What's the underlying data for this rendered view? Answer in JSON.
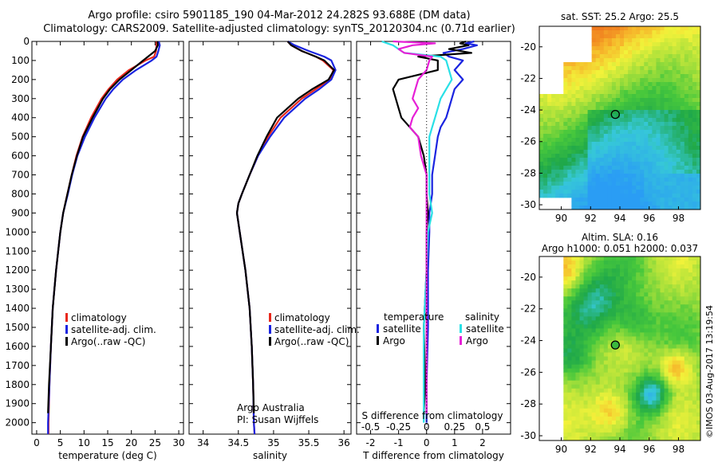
{
  "titles": {
    "line1": "Argo profile: csiro 5901185_190 04-Mar-2012 24.282S 93.688E (DM data)",
    "line2": "Climatology: CARS2009. Satellite-adjusted climatology: synTS_20120304.nc (0.71d earlier)"
  },
  "colors": {
    "climatology": "#e8281c",
    "satellite": "#1a24e0",
    "argo": "#000000",
    "sal_satellite": "#29e0e6",
    "sal_argo": "#e620d6"
  },
  "chart_data": [
    {
      "type": "line",
      "id": "temperature",
      "xlabel": "temperature (deg C)",
      "ylabel": "",
      "xlim": [
        -1,
        31
      ],
      "ylim": [
        2060,
        0
      ],
      "xticks": [
        "0",
        "5",
        "10",
        "15",
        "20",
        "25",
        "30"
      ],
      "xtick_values": [
        0,
        5,
        10,
        15,
        20,
        25,
        30
      ],
      "yticks": [
        "0",
        "100",
        "200",
        "300",
        "400",
        "500",
        "600",
        "700",
        "800",
        "900",
        "1000",
        "1100",
        "1200",
        "1300",
        "1400",
        "1500",
        "1600",
        "1700",
        "1800",
        "1900",
        "2000"
      ],
      "ytick_values": [
        0,
        100,
        200,
        300,
        400,
        500,
        600,
        700,
        800,
        900,
        1000,
        1100,
        1200,
        1300,
        1400,
        1500,
        1600,
        1700,
        1800,
        1900,
        2000
      ],
      "legend": [
        "climatology",
        "satellite-adj. clim.",
        "Argo(..raw -QC)"
      ],
      "series": [
        {
          "name": "climatology",
          "color": "#e8281c",
          "depth": [
            0,
            20,
            50,
            80,
            100,
            150,
            200,
            250,
            300,
            400,
            500,
            600,
            700,
            800,
            900,
            1000,
            1200,
            1400,
            1600,
            1800,
            2000,
            2060
          ],
          "values": [
            25.3,
            25.3,
            25.2,
            24.8,
            23.0,
            19.5,
            17.0,
            15.2,
            13.7,
            11.5,
            9.7,
            8.4,
            7.4,
            6.5,
            5.6,
            5.0,
            4.1,
            3.4,
            3.0,
            2.7,
            2.5,
            2.5
          ]
        },
        {
          "name": "satellite-adj. clim.",
          "color": "#1a24e0",
          "depth": [
            0,
            20,
            50,
            80,
            100,
            150,
            200,
            250,
            300,
            400,
            500,
            600,
            700,
            800,
            900,
            1000,
            1200,
            1400,
            1600,
            1800,
            2000,
            2060
          ],
          "values": [
            25.8,
            26.0,
            25.7,
            25.3,
            24.3,
            21.0,
            18.2,
            16.2,
            14.6,
            12.2,
            10.2,
            8.6,
            7.5,
            6.6,
            5.6,
            5.0,
            4.1,
            3.4,
            3.0,
            2.7,
            2.4,
            2.4
          ]
        },
        {
          "name": "Argo(..raw -QC)",
          "color": "#000000",
          "depth": [
            0,
            20,
            50,
            80,
            100,
            150,
            200,
            250,
            300,
            400,
            500,
            600,
            700,
            800,
            900,
            1000,
            1200,
            1400,
            1600,
            1800,
            1950
          ],
          "values": [
            25.5,
            25.6,
            25.0,
            23.5,
            22.5,
            20.0,
            17.5,
            15.5,
            14.0,
            11.8,
            9.8,
            8.5,
            7.4,
            6.5,
            5.6,
            5.0,
            4.1,
            3.4,
            3.0,
            2.6,
            2.4
          ]
        }
      ]
    },
    {
      "type": "line",
      "id": "salinity",
      "xlabel": "salinity",
      "ylabel": "",
      "xlim": [
        33.8,
        36.1
      ],
      "ylim": [
        2060,
        0
      ],
      "xticks": [
        "34",
        "34.5",
        "35",
        "35.5",
        "36"
      ],
      "xtick_values": [
        34,
        34.5,
        35,
        35.5,
        36
      ],
      "legend": [
        "climatology",
        "satellite-adj. clim.",
        "Argo(..raw -QC)"
      ],
      "annotation": [
        "Argo Australia",
        "PI: Susan Wijffels"
      ],
      "series": [
        {
          "name": "climatology",
          "color": "#e8281c",
          "depth": [
            0,
            20,
            50,
            80,
            100,
            150,
            200,
            250,
            300,
            400,
            500,
            600,
            700,
            800,
            850,
            900,
            1000,
            1200,
            1400,
            1600,
            1800,
            2000,
            2060
          ],
          "values": [
            35.2,
            35.25,
            35.4,
            35.6,
            35.7,
            35.85,
            35.8,
            35.6,
            35.4,
            35.1,
            34.92,
            34.78,
            34.66,
            34.55,
            34.5,
            34.48,
            34.52,
            34.6,
            34.66,
            34.69,
            34.71,
            34.72,
            34.73
          ]
        },
        {
          "name": "satellite-adj. clim.",
          "color": "#1a24e0",
          "depth": [
            0,
            20,
            50,
            80,
            100,
            150,
            200,
            250,
            300,
            400,
            500,
            600,
            700,
            800,
            850,
            900,
            1000,
            1200,
            1400,
            1600,
            1800,
            2000,
            2060
          ],
          "values": [
            35.2,
            35.3,
            35.5,
            35.72,
            35.82,
            35.88,
            35.82,
            35.65,
            35.45,
            35.15,
            34.95,
            34.78,
            34.66,
            34.55,
            34.5,
            34.48,
            34.52,
            34.6,
            34.66,
            34.69,
            34.71,
            34.72,
            34.73
          ]
        },
        {
          "name": "Argo(..raw -QC)",
          "color": "#000000",
          "depth": [
            0,
            20,
            50,
            80,
            100,
            150,
            200,
            250,
            300,
            400,
            500,
            600,
            700,
            800,
            850,
            900,
            1000,
            1200,
            1400,
            1600,
            1800,
            1950
          ],
          "values": [
            35.2,
            35.25,
            35.4,
            35.6,
            35.72,
            35.86,
            35.78,
            35.55,
            35.35,
            35.05,
            34.9,
            34.77,
            34.66,
            34.55,
            34.5,
            34.48,
            34.52,
            34.6,
            34.66,
            34.69,
            34.71,
            34.72
          ]
        }
      ]
    },
    {
      "type": "line",
      "id": "difference",
      "xlabel": "T difference from climatology",
      "xlabel_top": "S difference from climatology",
      "xlim": [
        -2.5,
        3
      ],
      "ylim": [
        2060,
        0
      ],
      "xticks": [
        "-2",
        "-1",
        "0",
        "1",
        "2"
      ],
      "xtick_values": [
        -2,
        -1,
        0,
        1,
        2
      ],
      "sticks": [
        "-0.5",
        "-0.25",
        "0",
        "0.25",
        "0.5"
      ],
      "stick_values": [
        -2,
        -1,
        0,
        1,
        2
      ],
      "legend_titles": [
        "temperature",
        "salinity"
      ],
      "legend": [
        "satellite",
        "Argo",
        "satellite",
        "Argo"
      ],
      "series": [
        {
          "name": "temperature satellite",
          "color": "#1a24e0",
          "depth": [
            0,
            10,
            20,
            40,
            60,
            80,
            100,
            150,
            200,
            250,
            300,
            350,
            400,
            450,
            500,
            600,
            700,
            800,
            900,
            1000,
            1200,
            1500,
            1800,
            2000
          ],
          "values": [
            1.7,
            1.4,
            1.8,
            1.3,
            0.6,
            0.8,
            1.3,
            1.0,
            1.3,
            1.0,
            0.9,
            0.8,
            0.7,
            0.5,
            0.4,
            0.3,
            0.2,
            0.2,
            0.1,
            0.1,
            0.05,
            0.05,
            0.0,
            0.0
          ]
        },
        {
          "name": "temperature Argo",
          "color": "#000000",
          "depth": [
            0,
            10,
            20,
            40,
            60,
            80,
            100,
            150,
            200,
            250,
            300,
            350,
            400,
            450,
            500,
            600,
            700,
            800,
            900,
            1000,
            1200,
            1500,
            1800,
            1950
          ],
          "values": [
            1.4,
            1.2,
            1.5,
            0.8,
            1.6,
            -0.3,
            0.4,
            0.4,
            -1.0,
            -1.2,
            -1.1,
            -1.0,
            -0.9,
            -0.6,
            -0.3,
            -0.1,
            0.0,
            0.0,
            0.05,
            0.0,
            0.0,
            -0.1,
            -0.05,
            -0.1
          ]
        },
        {
          "name": "salinity satellite",
          "color": "#29e0e6",
          "depth": [
            0,
            10,
            20,
            40,
            60,
            80,
            100,
            150,
            200,
            250,
            300,
            350,
            400,
            450,
            500,
            600,
            700,
            800,
            900,
            1000,
            1200,
            1500,
            1800,
            2000
          ],
          "values": [
            -1.6,
            -1.4,
            -1.2,
            -1.0,
            -0.8,
            0.5,
            0.7,
            0.8,
            0.9,
            0.7,
            0.5,
            0.4,
            0.3,
            0.2,
            0.1,
            0.1,
            0.1,
            0.1,
            0.2,
            0.05,
            0.0,
            -0.1,
            -0.1,
            -0.1
          ]
        },
        {
          "name": "salinity Argo",
          "color": "#e620d6",
          "depth": [
            0,
            10,
            20,
            40,
            60,
            80,
            100,
            150,
            200,
            250,
            300,
            350,
            400,
            450,
            500,
            600,
            700,
            800,
            900,
            1000,
            1200,
            1500,
            1800,
            1950
          ],
          "values": [
            -1.2,
            0.3,
            -0.5,
            -1.0,
            -0.8,
            0.2,
            0.1,
            0.0,
            -0.3,
            -0.4,
            -0.5,
            -0.3,
            -0.5,
            -0.6,
            -0.3,
            -0.2,
            0.0,
            0.0,
            0.0,
            0.0,
            0.0,
            0.0,
            0.0,
            0.0
          ]
        }
      ]
    },
    {
      "type": "heatmap",
      "id": "sst-map",
      "title": "sat. SST: 25.2 Argo: 25.5",
      "xlim": [
        88.5,
        99.5
      ],
      "ylim": [
        -30.3,
        -18.7
      ],
      "xticks": [
        "90",
        "92",
        "94",
        "96",
        "98"
      ],
      "xtick_values": [
        90,
        92,
        94,
        96,
        98
      ],
      "yticks": [
        "-20",
        "-22",
        "-24",
        "-26",
        "-28",
        "-30"
      ],
      "ytick_values": [
        -20,
        -22,
        -24,
        -26,
        -28,
        -30
      ],
      "marker": {
        "lon": 93.69,
        "lat": -24.28
      }
    },
    {
      "type": "heatmap",
      "id": "sla-map",
      "title": [
        "Altim. SLA: 0.16",
        "Argo h1000: 0.051 h2000: 0.037"
      ],
      "xlim": [
        88.5,
        99.5
      ],
      "ylim": [
        -30.3,
        -18.7
      ],
      "xticks": [
        "90",
        "92",
        "94",
        "96",
        "98"
      ],
      "xtick_values": [
        90,
        92,
        94,
        96,
        98
      ],
      "yticks": [
        "-20",
        "-22",
        "-24",
        "-26",
        "-28",
        "-30"
      ],
      "ytick_values": [
        -20,
        -22,
        -24,
        -26,
        -28,
        -30
      ],
      "marker": {
        "lon": 93.69,
        "lat": -24.28
      }
    }
  ],
  "credit": "©IMOS 03-Aug-2017 13:19:54"
}
